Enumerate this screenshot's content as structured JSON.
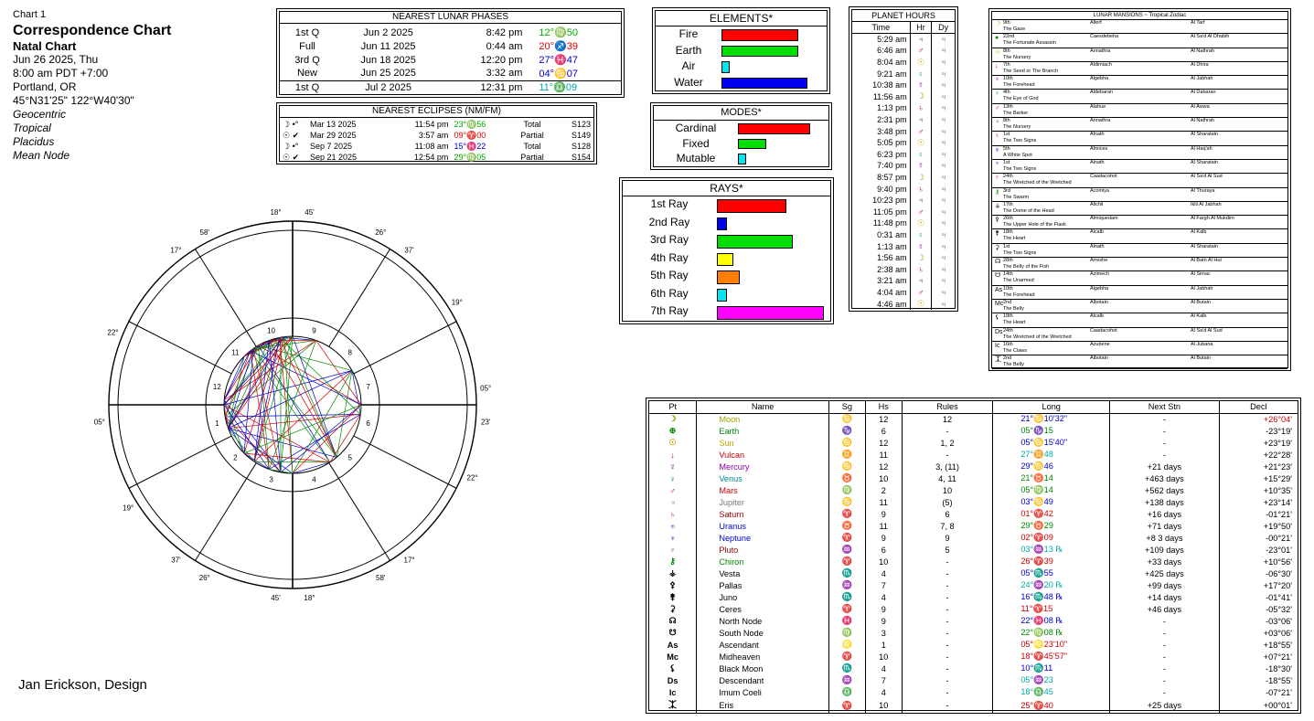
{
  "header": {
    "chart_no": "Chart 1",
    "title": "Correspondence Chart",
    "subtitle": "Natal Chart",
    "date": "Jun 26 2025, Thu",
    "time": "8:00 am  PDT +7:00",
    "place": "Portland, OR",
    "coords": "45°N31'25\" 122°W40'30\"",
    "zodiac": "Geocentric",
    "tropical": "Tropical",
    "houses": "Placidus",
    "node": "Mean Node"
  },
  "credit": "Jan Erickson, Design",
  "lunar_phases": {
    "title": "NEAREST LUNAR PHASES",
    "rows": [
      {
        "phase": "1st Q",
        "date": "Jun 2 2025",
        "time": "8:42 pm",
        "pos": "12°♍50",
        "color": "#00aa00"
      },
      {
        "phase": "Full",
        "date": "Jun 11 2025",
        "time": "0:44 am",
        "pos": "20°♐39",
        "color": "#e00000"
      },
      {
        "phase": "3rd Q",
        "date": "Jun 18 2025",
        "time": "12:20 pm",
        "pos": "27°♓47",
        "color": "#0000cc"
      },
      {
        "phase": "New",
        "date": "Jun 25 2025",
        "time": "3:32 am",
        "pos": "04°♋07",
        "color": "#0000cc"
      },
      {
        "phase": "1st Q",
        "date": "Jul 2 2025",
        "time": "12:31 pm",
        "pos": "11°♎09",
        "color": "#00aaaa"
      }
    ]
  },
  "eclipses": {
    "title": "NEAREST ECLIPSES (NM/FM)",
    "rows": [
      {
        "sym": "☽ •°",
        "date": "Mar 13 2025",
        "time": "11:54 pm",
        "pos": "23°♍56",
        "color": "#00aa00",
        "type": "Total",
        "saros": "S123"
      },
      {
        "sym": "☉ ✔",
        "date": "Mar 29 2025",
        "time": "3:57 am",
        "pos": "09°♈00",
        "color": "#e00000",
        "type": "Partial",
        "saros": "S149"
      },
      {
        "sym": "☽ •°",
        "date": "Sep 7 2025",
        "time": "11:08 am",
        "pos": "15°♓22",
        "color": "#0000cc",
        "type": "Total",
        "saros": "S128"
      },
      {
        "sym": "☉ ✔",
        "date": "Sep 21 2025",
        "time": "12:54 pm",
        "pos": "29°♍05",
        "color": "#00aa00",
        "type": "Partial",
        "saros": "S154"
      }
    ]
  },
  "elements": {
    "title": "ELEMENTS*",
    "rows": [
      {
        "label": "Fire",
        "value": 0.76,
        "color": "#ff0000"
      },
      {
        "label": "Earth",
        "value": 0.76,
        "color": "#00dd00"
      },
      {
        "label": "Air",
        "value": 0.08,
        "color": "#00e5ee"
      },
      {
        "label": "Water",
        "value": 0.85,
        "color": "#0000ee"
      }
    ]
  },
  "modes": {
    "title": "MODES*",
    "rows": [
      {
        "label": "Cardinal",
        "value": 0.82,
        "color": "#ff0000"
      },
      {
        "label": "Fixed",
        "value": 0.32,
        "color": "#00dd00"
      },
      {
        "label": "Mutable",
        "value": 0.09,
        "color": "#00e5ee"
      }
    ]
  },
  "rays": {
    "title": "RAYS*",
    "rows": [
      {
        "label": "1st Ray",
        "value": 0.64,
        "color": "#ff0000"
      },
      {
        "label": "2nd Ray",
        "value": 0.09,
        "color": "#0000ee"
      },
      {
        "label": "3rd Ray",
        "value": 0.7,
        "color": "#00dd00"
      },
      {
        "label": "4th Ray",
        "value": 0.15,
        "color": "#ffff00"
      },
      {
        "label": "5th Ray",
        "value": 0.21,
        "color": "#ff7f00"
      },
      {
        "label": "6th Ray",
        "value": 0.09,
        "color": "#00e5ee"
      },
      {
        "label": "7th Ray",
        "value": 0.99,
        "color": "#ff00ff"
      }
    ]
  },
  "planet_hours": {
    "title": "PLANET HOURS",
    "cols": [
      "Time",
      "Hr",
      "Dy"
    ],
    "rows": [
      {
        "t": "5:29 am",
        "h": "♃",
        "hc": "#555"
      },
      {
        "t": "6:46 am",
        "h": "♂",
        "hc": "#cc0000"
      },
      {
        "t": "8:04 am",
        "h": "☉",
        "hc": "#c8a000"
      },
      {
        "t": "9:21 am",
        "h": "♀",
        "hc": "#008888"
      },
      {
        "t": "10:38 am",
        "h": "☿",
        "hc": "#8800aa"
      },
      {
        "t": "11:56 am",
        "h": "☽",
        "hc": "#a0a000"
      },
      {
        "t": "1:13 pm",
        "h": "♄",
        "hc": "#990000"
      },
      {
        "t": "2:31 pm",
        "h": "♃",
        "hc": "#555"
      },
      {
        "t": "3:48 pm",
        "h": "♂",
        "hc": "#cc0000"
      },
      {
        "t": "5:05 pm",
        "h": "☉",
        "hc": "#c8a000"
      },
      {
        "t": "6:23 pm",
        "h": "♀",
        "hc": "#008888"
      },
      {
        "t": "7:40 pm",
        "h": "☿",
        "hc": "#8800aa"
      },
      {
        "t": "8:57 pm",
        "h": "☽",
        "hc": "#a0a000"
      },
      {
        "t": "9:40 pm",
        "h": "♄",
        "hc": "#990000"
      },
      {
        "t": "10:23 pm",
        "h": "♃",
        "hc": "#555"
      },
      {
        "t": "11:05 pm",
        "h": "♂",
        "hc": "#cc0000"
      },
      {
        "t": "11:48 pm",
        "h": "☉",
        "hc": "#c8a000"
      },
      {
        "t": "0:31 am",
        "h": "♀",
        "hc": "#008888"
      },
      {
        "t": "1:13 am",
        "h": "☿",
        "hc": "#8800aa"
      },
      {
        "t": "1:56 am",
        "h": "☽",
        "hc": "#a0a000"
      },
      {
        "t": "2:38 am",
        "h": "♄",
        "hc": "#990000"
      },
      {
        "t": "3:21 am",
        "h": "♃",
        "hc": "#555"
      },
      {
        "t": "4:04 am",
        "h": "♂",
        "hc": "#cc0000"
      },
      {
        "t": "4:46 am",
        "h": "☉",
        "hc": "#c8a000"
      }
    ],
    "day": "♃"
  },
  "mansions": {
    "title": "LUNAR MANSIONS ~ Tropical Zodiac",
    "rows": [
      {
        "g": "☽",
        "gc": "#a0a000",
        "n": "9th",
        "a": "Alterf",
        "b": "Al Tarf",
        "d": "The Gaze"
      },
      {
        "g": "●",
        "gc": "#008800",
        "n": "22nd",
        "a": "Caesdebeha",
        "b": "Al Sa'd Al Dhabih",
        "d": "The Fortunate Assassin"
      },
      {
        "g": "☉",
        "gc": "#c8a000",
        "n": "8th",
        "a": "Annathra",
        "b": "Al Nathrah",
        "d": "The Nursery"
      },
      {
        "g": "↓",
        "gc": "#cc0000",
        "n": "7th",
        "a": "Aldimiach",
        "b": "Al Dhira",
        "d": "The Seed or The Branch"
      },
      {
        "g": "☿",
        "gc": "#8800aa",
        "n": "10th",
        "a": "Algebha",
        "b": "Al Jabhah",
        "d": "The Forehead"
      },
      {
        "g": "♀",
        "gc": "#008888",
        "n": "4th",
        "a": "Aldebaran",
        "b": "Al Dabaran",
        "d": "The Eye of God"
      },
      {
        "g": "♂",
        "gc": "#cc0000",
        "n": "13th",
        "a": "Alahue",
        "b": "Al Awwa",
        "d": "The Barker"
      },
      {
        "g": "♃",
        "gc": "#555",
        "n": "8th",
        "a": "Annathra",
        "b": "Al Nathrah",
        "d": "The Nursery"
      },
      {
        "g": "♄",
        "gc": "#990000",
        "n": "1st",
        "a": "Alnath",
        "b": "Al Sharatain",
        "d": "The Two Signs"
      },
      {
        "g": "♅",
        "gc": "#0000cc",
        "n": "5th",
        "a": "Almices",
        "b": "Al Haq'ah",
        "d": "A White Spot"
      },
      {
        "g": "♆",
        "gc": "#0000cc",
        "n": "1st",
        "a": "Alnath",
        "b": "Al Sharatain",
        "d": "The Two Signs"
      },
      {
        "g": "♇",
        "gc": "#990000",
        "n": "24th",
        "a": "Caadacohot",
        "b": "Al Sa'd Al Sud",
        "d": "The Wretched of the Wretched"
      },
      {
        "g": "⚷",
        "gc": "#008800",
        "n": "3rd",
        "a": "Acomiya",
        "b": "Al Thuraya",
        "d": "The Swarm"
      },
      {
        "g": "⚶",
        "gc": "#000",
        "n": "17th",
        "a": "Alichil",
        "b": "Iklil Al Jabhah",
        "d": "The Dome of the Head"
      },
      {
        "g": "⚴",
        "gc": "#000",
        "n": "26th",
        "a": "Almiquedam",
        "b": "Al Fargh Al Mukdim",
        "d": "The Upper Hole of the Flask"
      },
      {
        "g": "⚵",
        "gc": "#000",
        "n": "18th",
        "a": "Alcalb",
        "b": "Al Kalb",
        "d": "The Heart"
      },
      {
        "g": "⚳",
        "gc": "#000",
        "n": "1st",
        "a": "Alnath",
        "b": "Al Sharatain",
        "d": "The Two Signs"
      },
      {
        "g": "☊",
        "gc": "#000",
        "n": "28th",
        "a": "Arrexhe",
        "b": "Al Batn Al Hut",
        "d": "The Belly of the Fish"
      },
      {
        "g": "☋",
        "gc": "#000",
        "n": "14th",
        "a": "Azimech",
        "b": "Al Simac",
        "d": "The Unarmed"
      },
      {
        "g": "As",
        "gc": "#000",
        "n": "10th",
        "a": "Algebha",
        "b": "Al Jabhah",
        "d": "The Forehead"
      },
      {
        "g": "Mc",
        "gc": "#000",
        "n": "2nd",
        "a": "Albotain",
        "b": "Al Butain",
        "d": "The Belly"
      },
      {
        "g": "⚸",
        "gc": "#000",
        "n": "18th",
        "a": "Alcalb",
        "b": "Al Kalb",
        "d": "The Heart"
      },
      {
        "g": "Ds",
        "gc": "#000",
        "n": "24th",
        "a": "Caadacohot",
        "b": "Al Sa'd Al Sud",
        "d": "The Wretched of the Wretched"
      },
      {
        "g": "Ic",
        "gc": "#000",
        "n": "16th",
        "a": "Azubene",
        "b": "Al Jubana",
        "d": "The Claws"
      },
      {
        "g": "⯰",
        "gc": "#000",
        "n": "2nd",
        "a": "Albotain",
        "b": "Al Butain",
        "d": "The Belly"
      }
    ]
  },
  "planets": {
    "cols": [
      "Pt",
      "Name",
      "Sg",
      "Hs",
      "Rules",
      "Long",
      "Next Stn",
      "Decl"
    ],
    "rows": [
      {
        "g": "☽",
        "gc": "#a0a000",
        "n": "Moon",
        "nc": "#a0a000",
        "s": "♋",
        "h": "12",
        "r": "12",
        "l": "21°♋10'32\"",
        "lc": "#0000cc",
        "ns": "-",
        "d": "+26°04'",
        "dc": "#cc0000"
      },
      {
        "g": "⊕",
        "gc": "#008800",
        "n": "Earth",
        "nc": "#008800",
        "s": "♑",
        "h": "6",
        "r": "-",
        "l": "05°♑15",
        "lc": "#008800",
        "ns": "-",
        "d": "-23°19'",
        "dc": "#000"
      },
      {
        "g": "☉",
        "gc": "#c8a000",
        "n": "Sun",
        "nc": "#c8a000",
        "s": "♋",
        "h": "12",
        "r": "1, 2",
        "l": "05°♋15'40\"",
        "lc": "#0000cc",
        "ns": "-",
        "d": "+23°19'",
        "dc": "#000"
      },
      {
        "g": "↓",
        "gc": "#cc0000",
        "n": "Vulcan",
        "nc": "#cc0000",
        "s": "♊",
        "h": "11",
        "r": "-",
        "l": "27°♊48",
        "lc": "#00aaaa",
        "ns": "-",
        "d": "+22°28'",
        "dc": "#000"
      },
      {
        "g": "☿",
        "gc": "#8800aa",
        "n": "Mercury",
        "nc": "#8800aa",
        "s": "♋",
        "h": "12",
        "r": "3, (11)",
        "l": "29°♋46",
        "lc": "#0000cc",
        "ns": "+21 days",
        "d": "+21°23'",
        "dc": "#000"
      },
      {
        "g": "♀",
        "gc": "#008888",
        "n": "Venus",
        "nc": "#008888",
        "s": "♉",
        "h": "10",
        "r": "4, 11",
        "l": "21°♉14",
        "lc": "#008800",
        "ns": "+463 days",
        "d": "+15°29'",
        "dc": "#000"
      },
      {
        "g": "♂",
        "gc": "#cc0000",
        "n": "Mars",
        "nc": "#cc0000",
        "s": "♍",
        "h": "2",
        "r": "10",
        "l": "05°♍14",
        "lc": "#008800",
        "ns": "+562 days",
        "d": "+10°35'",
        "dc": "#000"
      },
      {
        "g": "♃",
        "gc": "#777",
        "n": "Jupiter",
        "nc": "#777",
        "s": "♋",
        "h": "11",
        "r": "(5)",
        "l": "03°♋49",
        "lc": "#0000cc",
        "ns": "+138 days",
        "d": "+23°14'",
        "dc": "#000"
      },
      {
        "g": "♄",
        "gc": "#990000",
        "n": "Saturn",
        "nc": "#990000",
        "s": "♈",
        "h": "9",
        "r": "6",
        "l": "01°♈42",
        "lc": "#cc0000",
        "ns": "+16 days",
        "d": "-01°21'",
        "dc": "#000"
      },
      {
        "g": "♅",
        "gc": "#0000cc",
        "n": "Uranus",
        "nc": "#0000cc",
        "s": "♉",
        "h": "11",
        "r": "7, 8",
        "l": "29°♉29",
        "lc": "#008800",
        "ns": "+71 days",
        "d": "+19°50'",
        "dc": "#000"
      },
      {
        "g": "♆",
        "gc": "#0000cc",
        "n": "Neptune",
        "nc": "#0000cc",
        "s": "♈",
        "h": "9",
        "r": "9",
        "l": "02°♈09",
        "lc": "#cc0000",
        "ns": "+8 3 days",
        "d": "-00°21'",
        "dc": "#000"
      },
      {
        "g": "♇",
        "gc": "#990000",
        "n": "Pluto",
        "nc": "#990000",
        "s": "♒",
        "h": "6",
        "r": "5",
        "l": "03°♒13 ℞",
        "lc": "#00aaaa",
        "ns": "+109 days",
        "d": "-23°01'",
        "dc": "#000"
      },
      {
        "g": "⚷",
        "gc": "#008800",
        "n": "Chiron",
        "nc": "#008800",
        "s": "♈",
        "h": "10",
        "r": "-",
        "l": "26°♈39",
        "lc": "#cc0000",
        "ns": "+33 days",
        "d": "+10°56'",
        "dc": "#000"
      },
      {
        "g": "⚶",
        "gc": "#000",
        "n": "Vesta",
        "nc": "#000",
        "s": "♏",
        "h": "4",
        "r": "-",
        "l": "05°♏55",
        "lc": "#0000cc",
        "ns": "+425 days",
        "d": "-06°30'",
        "dc": "#000"
      },
      {
        "g": "⚴",
        "gc": "#000",
        "n": "Pallas",
        "nc": "#000",
        "s": "♒",
        "h": "7",
        "r": "-",
        "l": "24°♒20 ℞",
        "lc": "#00aaaa",
        "ns": "+99 days",
        "d": "+17°20'",
        "dc": "#000"
      },
      {
        "g": "⚵",
        "gc": "#000",
        "n": "Juno",
        "nc": "#000",
        "s": "♏",
        "h": "4",
        "r": "-",
        "l": "16°♏48 ℞",
        "lc": "#0000cc",
        "ns": "+14 days",
        "d": "-01°41'",
        "dc": "#000"
      },
      {
        "g": "⚳",
        "gc": "#000",
        "n": "Ceres",
        "nc": "#000",
        "s": "♈",
        "h": "9",
        "r": "-",
        "l": "11°♈15",
        "lc": "#cc0000",
        "ns": "+46 days",
        "d": "-05°32'",
        "dc": "#000"
      },
      {
        "g": "☊",
        "gc": "#000",
        "n": "North Node",
        "nc": "#000",
        "s": "♓",
        "h": "9",
        "r": "-",
        "l": "22°♓08 ℞",
        "lc": "#0000cc",
        "ns": "-",
        "d": "-03°06'",
        "dc": "#000"
      },
      {
        "g": "☋",
        "gc": "#000",
        "n": "South Node",
        "nc": "#000",
        "s": "♍",
        "h": "3",
        "r": "-",
        "l": "22°♍08 ℞",
        "lc": "#008800",
        "ns": "-",
        "d": "+03°06'",
        "dc": "#000"
      },
      {
        "g": "As",
        "gc": "#000",
        "n": "Ascendant",
        "nc": "#000",
        "s": "♌",
        "h": "1",
        "r": "-",
        "l": "05°♌23'10\"",
        "lc": "#cc0000",
        "ns": "-",
        "d": "+18°55'",
        "dc": "#000"
      },
      {
        "g": "Mc",
        "gc": "#000",
        "n": "Midheaven",
        "nc": "#000",
        "s": "♈",
        "h": "10",
        "r": "-",
        "l": "18°♈45'57\"",
        "lc": "#cc0000",
        "ns": "-",
        "d": "+07°21'",
        "dc": "#000"
      },
      {
        "g": "⚸",
        "gc": "#000",
        "n": "Black Moon",
        "nc": "#000",
        "s": "♏",
        "h": "4",
        "r": "-",
        "l": "10°♏11",
        "lc": "#0000cc",
        "ns": "-",
        "d": "-18°30'",
        "dc": "#000"
      },
      {
        "g": "Ds",
        "gc": "#000",
        "n": "Descendant",
        "nc": "#000",
        "s": "♒",
        "h": "7",
        "r": "-",
        "l": "05°♒23",
        "lc": "#00aaaa",
        "ns": "-",
        "d": "-18°55'",
        "dc": "#000"
      },
      {
        "g": "Ic",
        "gc": "#000",
        "n": "Imum Coeli",
        "nc": "#000",
        "s": "♎",
        "h": "4",
        "r": "-",
        "l": "18°♎45",
        "lc": "#00aaaa",
        "ns": "-",
        "d": "-07°21'",
        "dc": "#000"
      },
      {
        "g": "⯰",
        "gc": "#000",
        "n": "Eris",
        "nc": "#000",
        "s": "♈",
        "h": "10",
        "r": "-",
        "l": "25°♈40",
        "lc": "#cc0000",
        "ns": "+25 days",
        "d": "+00°01'",
        "dc": "#000"
      }
    ]
  },
  "wheel": {
    "houses": [
      "1",
      "2",
      "3",
      "4",
      "5",
      "6",
      "7",
      "8",
      "9",
      "10",
      "11",
      "12"
    ],
    "cusps": [
      {
        "deg": "18°",
        "min": "45'",
        "sign": "♈",
        "sc": "#cc0000"
      },
      {
        "deg": "17°",
        "min": "58'",
        "sign": "♓",
        "sc": "#0000cc"
      },
      {
        "deg": "22°",
        "min": "",
        "sign": "♒",
        "sc": "#00aaaa"
      },
      {
        "deg": "05°",
        "min": "",
        "sign": "♒",
        "sc": "#00aaaa"
      },
      {
        "deg": "19°",
        "min": "",
        "sign": "♑",
        "sc": "#008800"
      },
      {
        "deg": "26°",
        "min": "37'",
        "sign": "♏",
        "sc": "#0000cc"
      },
      {
        "deg": "18°",
        "min": "45'",
        "sign": "♎",
        "sc": "#00aaaa"
      },
      {
        "deg": "17°",
        "min": "58'",
        "sign": "♍",
        "sc": "#008800"
      },
      {
        "deg": "22°",
        "min": "",
        "sign": "♌",
        "sc": "#cc0000"
      },
      {
        "deg": "05°",
        "min": "23'",
        "sign": "♌",
        "sc": "#cc0000"
      },
      {
        "deg": "19°",
        "min": "",
        "sign": "♋",
        "sc": "#0000cc"
      },
      {
        "deg": "26°",
        "min": "37'",
        "sign": "♊",
        "sc": "#00aaaa"
      }
    ]
  }
}
